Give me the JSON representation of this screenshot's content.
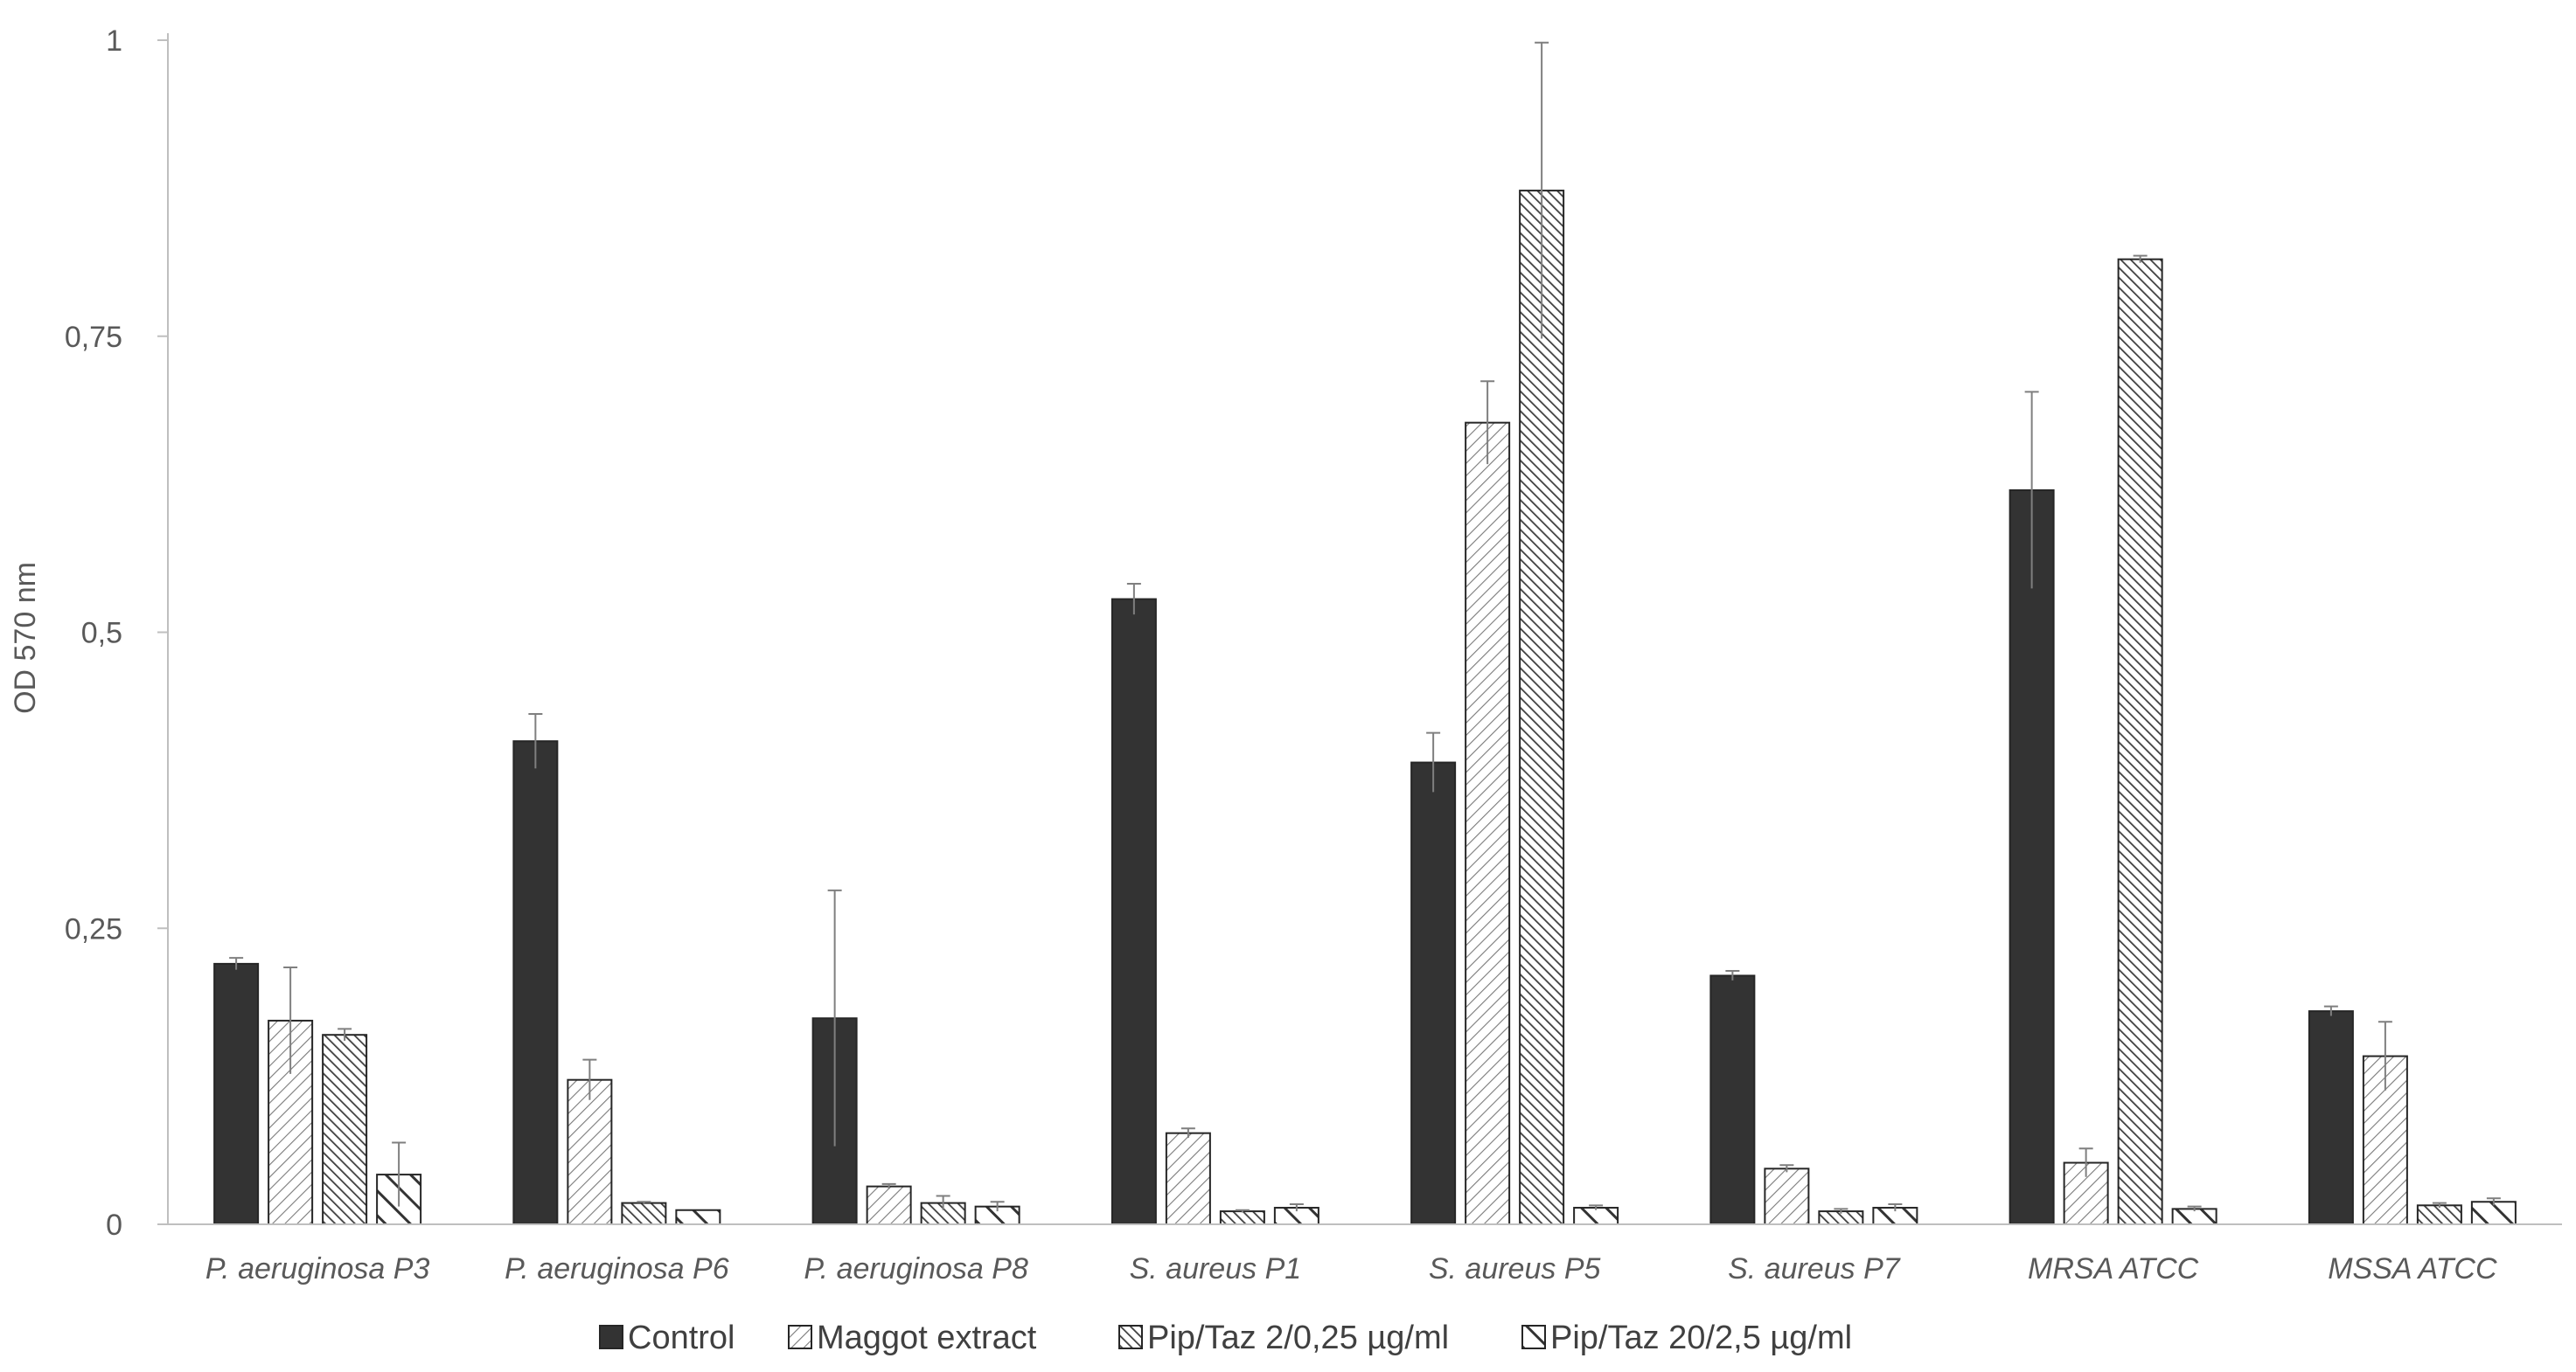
{
  "chart_data": {
    "type": "bar",
    "title": "",
    "xlabel": "",
    "ylabel": "OD 570 nm",
    "ylim": [
      0,
      1
    ],
    "yticks": [
      0,
      0.25,
      0.5,
      0.75,
      1
    ],
    "ytick_labels": [
      "0",
      "0,25",
      "0,5",
      "0,75",
      "1"
    ],
    "grid": false,
    "legend_position": "bottom",
    "categories": [
      "P. aeruginosa P3",
      "P. aeruginosa P6",
      "P. aeruginosa P8",
      "S. aureus P1",
      "S. aureus P5",
      "S. aureus P7",
      "MRSA ATCC",
      "MSSA ATCC"
    ],
    "series": [
      {
        "name": "Control",
        "pattern": "solid",
        "color": "#333333",
        "values": [
          0.22,
          0.408,
          0.174,
          0.528,
          0.39,
          0.21,
          0.62,
          0.18
        ],
        "errors": [
          0.005,
          0.023,
          0.108,
          0.013,
          0.025,
          0.004,
          0.083,
          0.004
        ]
      },
      {
        "name": "Maggot extract",
        "pattern": "dense-diagonal-light",
        "color": "#ffffff",
        "values": [
          0.172,
          0.122,
          0.032,
          0.077,
          0.677,
          0.047,
          0.052,
          0.142
        ],
        "errors": [
          0.045,
          0.017,
          0.002,
          0.004,
          0.035,
          0.003,
          0.012,
          0.029
        ]
      },
      {
        "name": "Pip/Taz 2/0,25 µg/ml",
        "pattern": "dense-diagonal-dark",
        "color": "#ffffff",
        "values": [
          0.16,
          0.018,
          0.018,
          0.011,
          0.873,
          0.011,
          0.815,
          0.016
        ],
        "errors": [
          0.005,
          0.001,
          0.006,
          0.001,
          0.125,
          0.002,
          0.003,
          0.002
        ]
      },
      {
        "name": "Pip/Taz 20/2,5 µg/ml",
        "pattern": "wide-diagonal",
        "color": "#ffffff",
        "values": [
          0.042,
          0.012,
          0.015,
          0.014,
          0.014,
          0.014,
          0.013,
          0.019
        ],
        "errors": [
          0.027,
          0.0,
          0.004,
          0.003,
          0.002,
          0.003,
          0.002,
          0.003
        ]
      }
    ]
  }
}
